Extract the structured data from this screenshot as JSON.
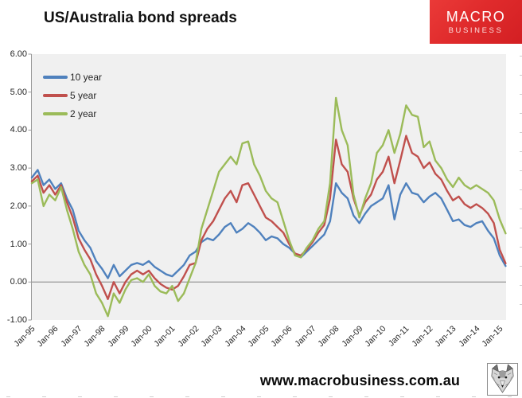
{
  "header": {
    "title": "US/Australia bond spreads"
  },
  "logo": {
    "line1": "MACRO",
    "line2": "BUSINESS",
    "bg_color": "#e02b2c",
    "text_color": "#ffffff"
  },
  "footer": {
    "url": "www.macrobusiness.com.au",
    "icon": "wolf-logo"
  },
  "chart_data": {
    "type": "line",
    "title": "US/Australia bond spreads",
    "xlabel": "",
    "ylabel": "",
    "ylim": [
      -1.0,
      6.0
    ],
    "y_tick_labels": [
      "6.00",
      "5.00",
      "4.00",
      "3.00",
      "2.00",
      "1.00",
      "0.00",
      "-1.00"
    ],
    "y_tick_values": [
      6,
      5,
      4,
      3,
      2,
      1,
      0,
      -1
    ],
    "x_tick_labels": [
      "Jan-95",
      "Jan-96",
      "Jan-97",
      "Jan-98",
      "Jan-99",
      "Jan-00",
      "Jan-01",
      "Jan-02",
      "Jan-03",
      "Jan-04",
      "Jan-05",
      "Jan-06",
      "Jan-07",
      "Jan-08",
      "Jan-09",
      "Jan-10",
      "Jan-11",
      "Jan-12",
      "Jan-13",
      "Jan-14",
      "Jan-15"
    ],
    "x_unit": "quarterly observations, Jan-1995 to Apr-2015",
    "grid": "none (zero baseline only)",
    "plot_bg_color": "#f0f0f0",
    "axis_color": "#9a9a9a",
    "zero_line_color": "#808080",
    "legend_position": "top-left inside plot",
    "series": [
      {
        "name": "10 year",
        "color": "#4f81bd",
        "values": [
          2.75,
          2.95,
          2.55,
          2.7,
          2.45,
          2.6,
          2.2,
          1.9,
          1.35,
          1.1,
          0.9,
          0.55,
          0.35,
          0.1,
          0.45,
          0.15,
          0.3,
          0.45,
          0.5,
          0.45,
          0.55,
          0.4,
          0.3,
          0.2,
          0.15,
          0.3,
          0.45,
          0.7,
          0.8,
          1.05,
          1.15,
          1.1,
          1.25,
          1.45,
          1.55,
          1.3,
          1.4,
          1.55,
          1.45,
          1.3,
          1.1,
          1.2,
          1.15,
          1.0,
          0.9,
          0.75,
          0.65,
          0.8,
          0.95,
          1.1,
          1.25,
          1.6,
          2.6,
          2.35,
          2.2,
          1.75,
          1.55,
          1.8,
          2.0,
          2.1,
          2.2,
          2.55,
          1.65,
          2.3,
          2.6,
          2.35,
          2.3,
          2.1,
          2.25,
          2.35,
          2.2,
          1.9,
          1.6,
          1.65,
          1.5,
          1.45,
          1.55,
          1.6,
          1.35,
          1.15,
          0.7,
          0.42
        ]
      },
      {
        "name": "5 year",
        "color": "#c0504d",
        "values": [
          2.65,
          2.8,
          2.35,
          2.55,
          2.3,
          2.55,
          2.1,
          1.7,
          1.15,
          0.85,
          0.6,
          0.2,
          -0.1,
          -0.45,
          0.0,
          -0.3,
          0.0,
          0.2,
          0.3,
          0.2,
          0.3,
          0.1,
          -0.05,
          -0.15,
          -0.2,
          -0.1,
          0.15,
          0.45,
          0.5,
          1.1,
          1.4,
          1.6,
          1.9,
          2.2,
          2.4,
          2.1,
          2.55,
          2.6,
          2.3,
          2.0,
          1.7,
          1.6,
          1.45,
          1.3,
          1.0,
          0.75,
          0.7,
          0.85,
          1.05,
          1.3,
          1.5,
          2.2,
          3.75,
          3.1,
          2.9,
          2.2,
          1.75,
          2.1,
          2.3,
          2.7,
          2.9,
          3.3,
          2.6,
          3.2,
          3.85,
          3.4,
          3.3,
          3.0,
          3.15,
          2.85,
          2.7,
          2.4,
          2.15,
          2.25,
          2.05,
          1.95,
          2.05,
          1.95,
          1.8,
          1.55,
          0.85,
          0.49
        ]
      },
      {
        "name": "2 year",
        "color": "#9bbb59",
        "values": [
          2.6,
          2.7,
          2.0,
          2.3,
          2.15,
          2.5,
          1.9,
          1.4,
          0.8,
          0.45,
          0.2,
          -0.3,
          -0.55,
          -0.9,
          -0.3,
          -0.55,
          -0.2,
          0.05,
          0.1,
          0.0,
          0.2,
          -0.1,
          -0.25,
          -0.3,
          -0.1,
          -0.5,
          -0.3,
          0.1,
          0.5,
          1.4,
          1.9,
          2.4,
          2.9,
          3.1,
          3.3,
          3.1,
          3.65,
          3.7,
          3.1,
          2.8,
          2.4,
          2.2,
          2.1,
          1.6,
          1.1,
          0.7,
          0.65,
          0.9,
          1.1,
          1.4,
          1.6,
          2.6,
          4.85,
          4.0,
          3.6,
          2.3,
          1.7,
          2.2,
          2.6,
          3.4,
          3.6,
          4.0,
          3.4,
          3.9,
          4.65,
          4.4,
          4.35,
          3.55,
          3.7,
          3.2,
          3.0,
          2.7,
          2.5,
          2.75,
          2.55,
          2.45,
          2.55,
          2.45,
          2.35,
          2.15,
          1.65,
          1.28
        ]
      }
    ]
  }
}
